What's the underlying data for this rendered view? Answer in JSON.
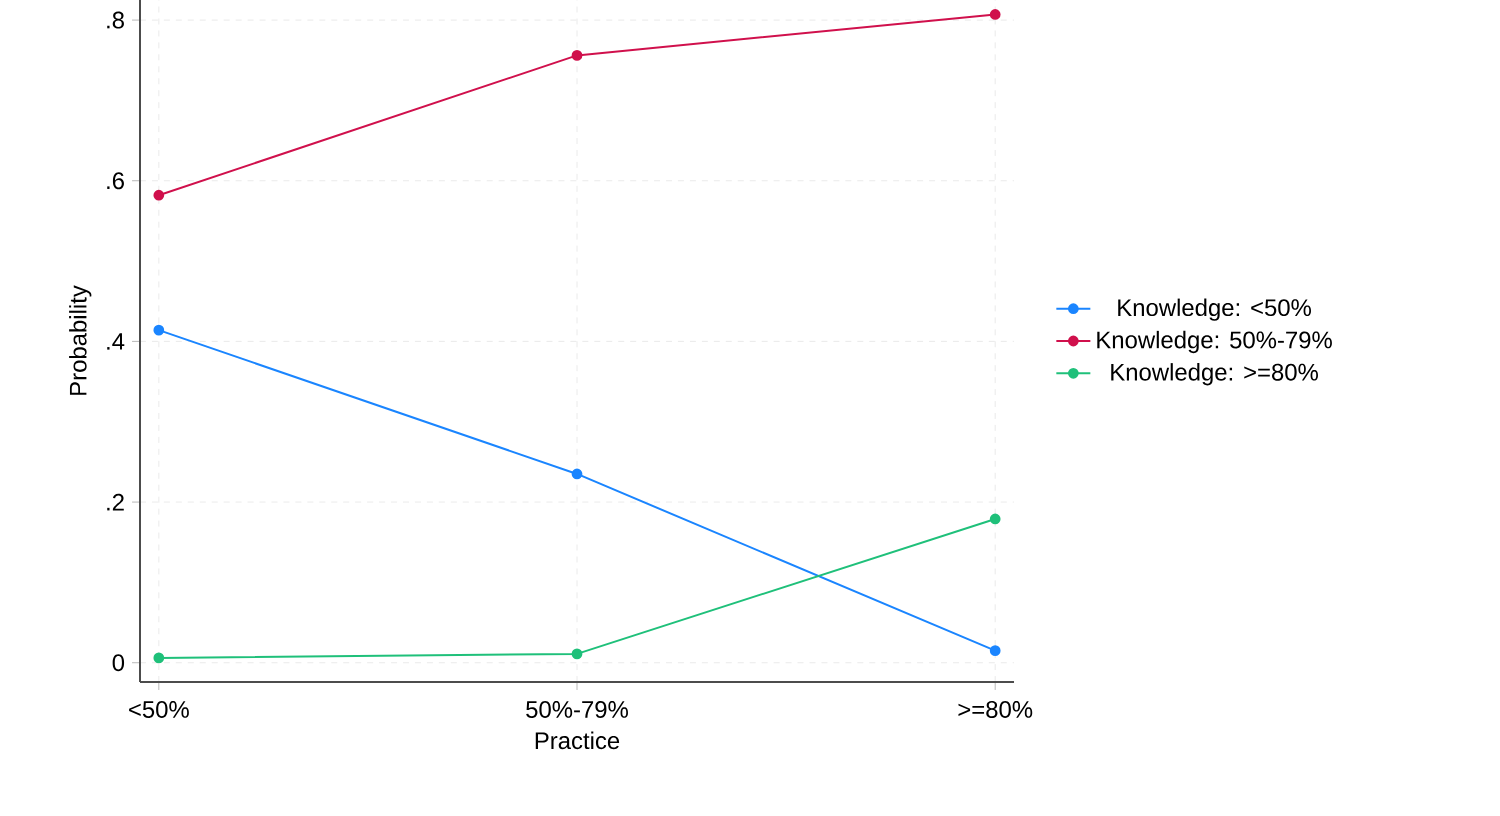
{
  "chart_data": {
    "type": "line",
    "xlabel": "Practice",
    "ylabel": "Probability",
    "categories": [
      "<50%",
      "50%-79%",
      ">=80%"
    ],
    "series": [
      {
        "name": "Knowledge: <50%",
        "color": "#1a85ff",
        "values": [
          0.414,
          0.235,
          0.015
        ]
      },
      {
        "name": "Knowledge: 50%-79%",
        "color": "#d0104c",
        "values": [
          0.582,
          0.756,
          0.807
        ]
      },
      {
        "name": "Knowledge: >=80%",
        "color": "#1fc07a",
        "values": [
          0.006,
          0.011,
          0.179
        ]
      }
    ],
    "ylim": [
      -0.024,
      0.825
    ],
    "yticks": [
      0,
      {
        "value": 0.2,
        "label": ".2"
      },
      {
        "value": 0.4,
        "label": ".4"
      },
      {
        "value": 0.6,
        "label": ".6"
      },
      {
        "value": 0.8,
        "label": ".8"
      }
    ],
    "grid": true,
    "legend": "right",
    "marker": "circle",
    "line_style": "solid"
  }
}
